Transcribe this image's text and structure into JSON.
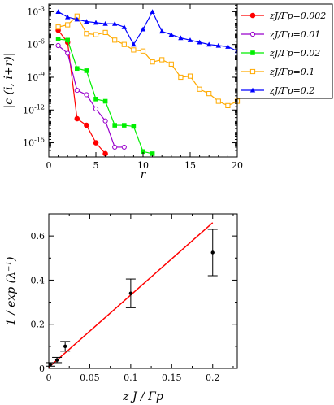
{
  "chart_data": [
    {
      "type": "line",
      "title": "",
      "xlabel": "r",
      "ylabel": "|c (i, i+r)|",
      "xlim": [
        0,
        20
      ],
      "ylim_log10": [
        -16.3,
        -2.3
      ],
      "yscale": "log",
      "xticks": [
        "0",
        "5",
        "10",
        "15",
        "20"
      ],
      "yticks": [
        "10^-3",
        "10^-6",
        "10^-9",
        "10^-12",
        "10^-15"
      ],
      "legend_position": "top-right",
      "series": [
        {
          "name": "zJ/Γp=0.002",
          "color": "#ff0000",
          "marker": "filled-circle",
          "x": [
            1,
            2,
            3,
            4,
            5,
            6
          ],
          "log10y": [
            -4.7,
            -5.8,
            -12.8,
            -13.4,
            -15.0,
            -16.0
          ]
        },
        {
          "name": "zJ/Γp=0.01",
          "color": "#9900cc",
          "marker": "open-circle",
          "x": [
            1,
            2,
            3,
            4,
            5,
            6,
            7,
            8
          ],
          "log10y": [
            -6.1,
            -6.8,
            -10.2,
            -10.6,
            -11.9,
            -13.0,
            -15.4,
            -15.4
          ]
        },
        {
          "name": "zJ/Γp=0.02",
          "color": "#00ee00",
          "marker": "filled-square",
          "x": [
            1,
            2,
            3,
            4,
            5,
            6,
            7,
            8,
            9,
            10,
            11
          ],
          "log10y": [
            -5.5,
            -5.6,
            -8.2,
            -8.4,
            -11.0,
            -11.2,
            -13.4,
            -13.4,
            -13.5,
            -15.8,
            -16.0
          ]
        },
        {
          "name": "zJ/Γp=0.1",
          "color": "#ffaa00",
          "marker": "open-square",
          "x": [
            1,
            2,
            3,
            4,
            5,
            6,
            7,
            8,
            9,
            10,
            11,
            12,
            13,
            14,
            15,
            16,
            17,
            18,
            19,
            20
          ],
          "log10y": [
            -4.4,
            -4.2,
            -3.4,
            -5.0,
            -5.1,
            -4.9,
            -5.6,
            -6.0,
            -6.5,
            -6.6,
            -7.6,
            -7.4,
            -7.8,
            -9.0,
            -8.9,
            -10.1,
            -10.5,
            -11.2,
            -11.6,
            -11.2
          ]
        },
        {
          "name": "zJ/Γp=0.2",
          "color": "#0000ff",
          "marker": "filled-triangle",
          "x": [
            1,
            2,
            3,
            4,
            5,
            6,
            7,
            8,
            9,
            10,
            11,
            12,
            13,
            14,
            15,
            16,
            17,
            18,
            19,
            20
          ],
          "log10y": [
            -3.0,
            -3.5,
            -3.7,
            -3.9,
            -4.0,
            -4.1,
            -4.1,
            -4.4,
            -6.0,
            -4.6,
            -3.0,
            -4.8,
            -5.1,
            -5.4,
            -5.6,
            -5.8,
            -6.0,
            -6.1,
            -6.2,
            -6.6
          ]
        }
      ]
    },
    {
      "type": "scatter",
      "title": "",
      "xlabel": "z J / Γp",
      "ylabel": "1 / exp (λ⁻¹)",
      "xlim": [
        0,
        0.23
      ],
      "ylim": [
        0,
        0.7
      ],
      "xticks": [
        "0",
        "0.05",
        "0.1",
        "0.15",
        "0.2"
      ],
      "yticks": [
        "0",
        "0.2",
        "0.4",
        "0.6"
      ],
      "points": {
        "x": [
          0.002,
          0.01,
          0.02,
          0.1,
          0.2
        ],
        "y": [
          0.018,
          0.038,
          0.1,
          0.34,
          0.525
        ],
        "yerr": [
          0.008,
          0.012,
          0.022,
          0.065,
          0.105
        ],
        "color": "#000000"
      },
      "fit_line": {
        "x": [
          0,
          0.2
        ],
        "y": [
          0.005,
          0.66
        ],
        "color": "#ff0000"
      }
    }
  ]
}
